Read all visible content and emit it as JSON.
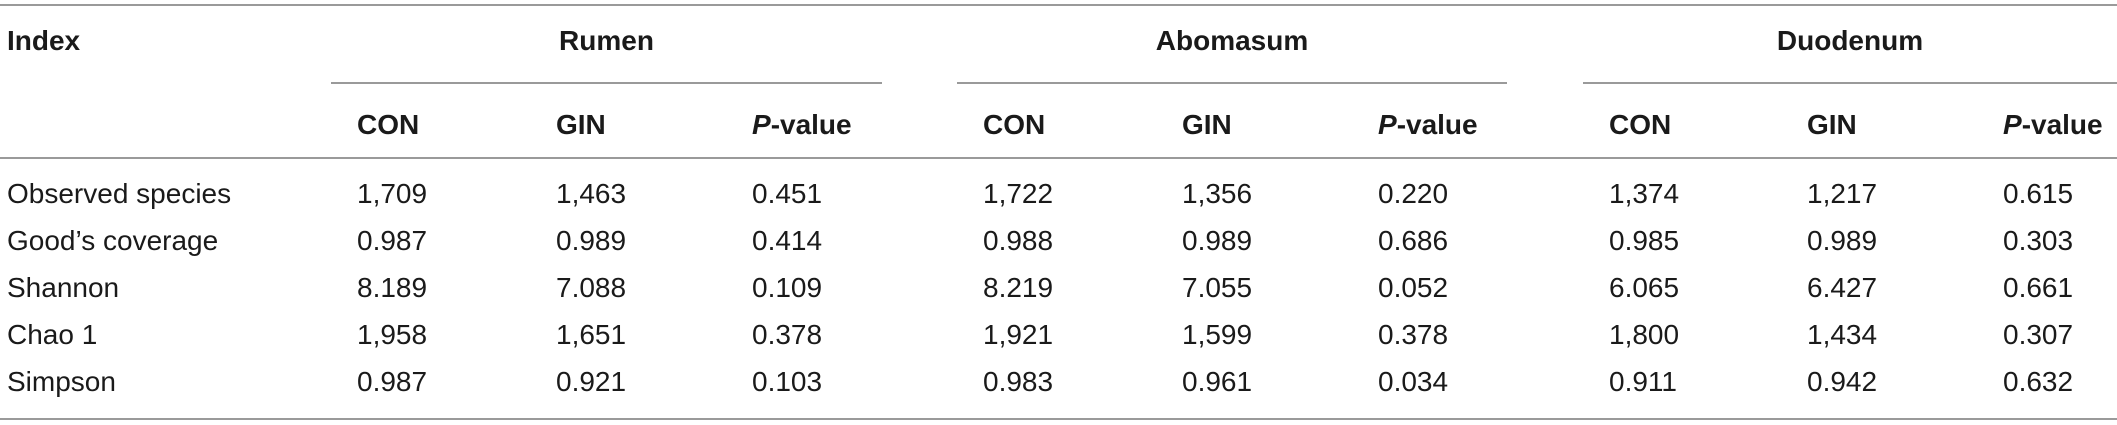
{
  "table": {
    "index_header": "Index",
    "groups": [
      "Rumen",
      "Abomasum",
      "Duodenum"
    ],
    "subheaders": {
      "con": "CON",
      "gin": "GIN",
      "p_italic": "P",
      "p_rest": "-value"
    },
    "rows": [
      {
        "label": "Observed species",
        "values": [
          "1,709",
          "1,463",
          "0.451",
          "1,722",
          "1,356",
          "0.220",
          "1,374",
          "1,217",
          "0.615"
        ]
      },
      {
        "label": "Good’s coverage",
        "values": [
          "0.987",
          "0.989",
          "0.414",
          "0.988",
          "0.989",
          "0.686",
          "0.985",
          "0.989",
          "0.303"
        ]
      },
      {
        "label": "Shannon",
        "values": [
          "8.189",
          "7.088",
          "0.109",
          "8.219",
          "7.055",
          "0.052",
          "6.065",
          "6.427",
          "0.661"
        ]
      },
      {
        "label": "Chao 1",
        "values": [
          "1,958",
          "1,651",
          "0.378",
          "1,921",
          "1,599",
          "0.378",
          "1,800",
          "1,434",
          "0.307"
        ]
      },
      {
        "label": "Simpson",
        "values": [
          "0.987",
          "0.921",
          "0.103",
          "0.983",
          "0.961",
          "0.034",
          "0.911",
          "0.942",
          "0.632"
        ]
      }
    ]
  }
}
